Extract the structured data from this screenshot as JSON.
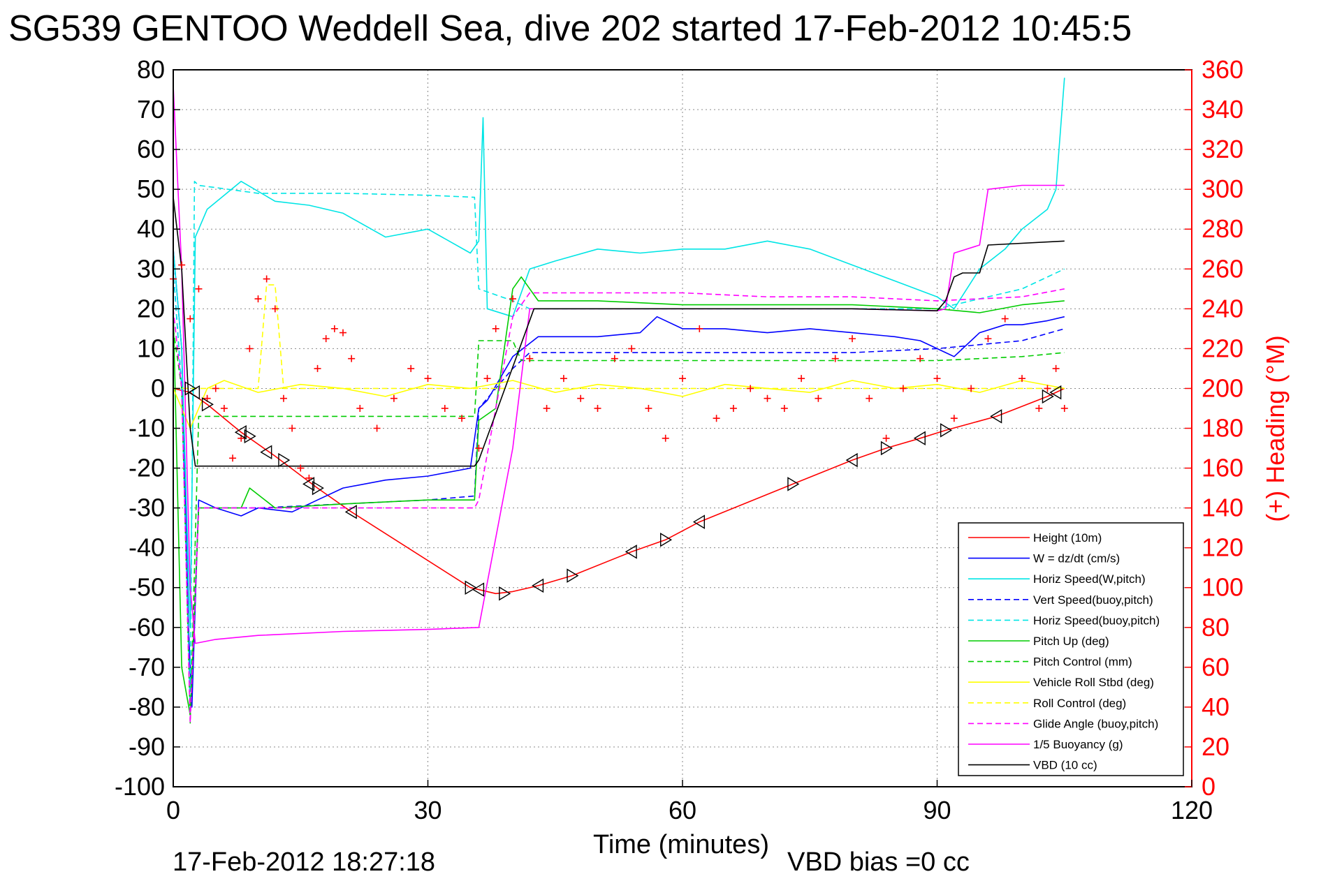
{
  "chart_data": {
    "type": "line",
    "title": "SG539 GENTOO Weddell Sea, dive 202 started 17-Feb-2012 10:45:5",
    "xlabel": "Time (minutes)",
    "ylabel_right": "(+) Heading (°M)",
    "xlim": [
      0,
      120
    ],
    "ylim_left": [
      -100,
      80
    ],
    "ylim_right": [
      0,
      360
    ],
    "x_ticks": [
      "0",
      "30",
      "60",
      "90",
      "120"
    ],
    "y_ticks_left": [
      "80",
      "70",
      "60",
      "50",
      "40",
      "30",
      "20",
      "10",
      "0",
      "-10",
      "-20",
      "-30",
      "-40",
      "-50",
      "-60",
      "-70",
      "-80",
      "-90",
      "-100"
    ],
    "y_ticks_right": [
      "360",
      "340",
      "320",
      "300",
      "280",
      "260",
      "240",
      "220",
      "200",
      "180",
      "160",
      "140",
      "120",
      "100",
      "80",
      "60",
      "40",
      "20",
      "0"
    ],
    "grid": true,
    "legend_position": "bottom-right",
    "footer_left": "17-Feb-2012 18:27:18",
    "footer_right": "VBD bias =0 cc",
    "series": [
      {
        "name": "Height (10m)",
        "color": "#ff0000",
        "style": "solid",
        "x": [
          0,
          2,
          4,
          8,
          12,
          17,
          21,
          35,
          38,
          40,
          43,
          47,
          54,
          58,
          62,
          73,
          80,
          84,
          88,
          91,
          97,
          103,
          105
        ],
        "y": [
          0,
          -1,
          -4,
          -11,
          -17,
          -25,
          -31,
          -50,
          -51.5,
          -51,
          -49.5,
          -47,
          -41,
          -38,
          -33.5,
          -24,
          -18,
          -15,
          -12.5,
          -10.5,
          -7,
          -2,
          0
        ]
      },
      {
        "name": "W = dz/dt (cm/s)",
        "color": "#0000ff",
        "style": "solid",
        "x": [
          0,
          1,
          1.8,
          2.2,
          3,
          5,
          8,
          10,
          14,
          17,
          20,
          25,
          30,
          35,
          36,
          37,
          40,
          43,
          50,
          55,
          57,
          60,
          65,
          70,
          75,
          80,
          85,
          88,
          90,
          92,
          95,
          98,
          100,
          103,
          105
        ],
        "y": [
          35,
          10,
          -60,
          -80,
          -28,
          -30,
          -32,
          -30,
          -31,
          -28,
          -25,
          -23,
          -22,
          -20,
          -5,
          -3,
          8,
          13,
          13,
          14,
          18,
          15,
          15,
          14,
          15,
          14,
          13,
          12,
          10,
          8,
          14,
          16,
          16,
          17,
          18
        ]
      },
      {
        "name": "Horiz Speed(W,pitch)",
        "color": "#00e5e5",
        "style": "solid",
        "x": [
          0,
          1,
          2,
          2.6,
          4,
          8,
          12,
          16,
          20,
          25,
          30,
          35,
          36,
          36.5,
          37,
          40,
          42,
          45,
          50,
          55,
          60,
          65,
          70,
          75,
          80,
          85,
          90,
          92,
          95,
          98,
          100,
          103,
          104,
          105
        ],
        "y": [
          35,
          10,
          -60,
          38,
          45,
          52,
          47,
          46,
          44,
          38,
          40,
          34,
          37,
          68,
          20,
          18,
          30,
          32,
          35,
          34,
          35,
          35,
          37,
          35,
          31,
          27,
          23,
          20,
          30,
          35,
          40,
          45,
          50,
          78
        ]
      },
      {
        "name": "Vert Speed(buoy,pitch)",
        "color": "#0000ff",
        "style": "dashed",
        "x": [
          0,
          1,
          2,
          3,
          10,
          20,
          30,
          35.5,
          36,
          40,
          42,
          50,
          60,
          70,
          80,
          90,
          100,
          105
        ],
        "y": [
          30,
          0,
          -80,
          -30,
          -30,
          -29,
          -28,
          -27,
          -5,
          5,
          9,
          9,
          9,
          9,
          9,
          10,
          12,
          15
        ]
      },
      {
        "name": "Horiz Speed(buoy,pitch)",
        "color": "#00e5e5",
        "style": "dashed",
        "x": [
          0,
          1,
          2,
          2.5,
          3,
          10,
          20,
          30,
          35.5,
          36,
          40,
          42,
          50,
          60,
          70,
          80,
          90,
          100,
          105
        ],
        "y": [
          30,
          0,
          -80,
          52,
          51,
          49,
          49,
          48.5,
          48,
          25,
          22,
          20,
          20,
          20,
          20,
          20,
          20,
          25,
          30
        ]
      },
      {
        "name": "Pitch Up (deg)",
        "color": "#00cc00",
        "style": "solid",
        "x": [
          0,
          1,
          2,
          3,
          8,
          9,
          12,
          20,
          30,
          35.5,
          36,
          38,
          40,
          41,
          43,
          50,
          60,
          70,
          80,
          90,
          95,
          100,
          105
        ],
        "y": [
          20,
          -70,
          -82,
          -30,
          -30,
          -25,
          -30,
          -29,
          -28,
          -28,
          -8,
          -5,
          25,
          28,
          22,
          22,
          21,
          21,
          21,
          20,
          19,
          21,
          22
        ]
      },
      {
        "name": "Pitch Control (mm)",
        "color": "#00cc00",
        "style": "dashed",
        "x": [
          0,
          1,
          2,
          3,
          35.5,
          36,
          40,
          41,
          60,
          80,
          90,
          100,
          105
        ],
        "y": [
          15,
          0,
          -84,
          -7,
          -7,
          12,
          12,
          7,
          7,
          7,
          7,
          8,
          9
        ]
      },
      {
        "name": "Vehicle Roll Stbd (deg)",
        "color": "#ffff00",
        "style": "solid",
        "x": [
          0,
          2,
          4,
          6,
          10,
          15,
          20,
          25,
          30,
          35,
          40,
          45,
          50,
          55,
          60,
          65,
          70,
          75,
          80,
          85,
          90,
          95,
          100,
          105
        ],
        "y": [
          0,
          -10,
          0,
          2,
          -1,
          1,
          0,
          -2,
          1,
          0,
          2,
          -1,
          1,
          0,
          -2,
          1,
          0,
          -1,
          2,
          0,
          1,
          -1,
          2,
          0
        ]
      },
      {
        "name": "Roll Control (deg)",
        "color": "#ffff00",
        "style": "dashed",
        "x": [
          0,
          10,
          11,
          12,
          13,
          30,
          60,
          90,
          100,
          105
        ],
        "y": [
          0,
          0,
          26,
          26,
          0,
          0,
          0,
          0,
          0,
          0
        ]
      },
      {
        "name": "Glide Angle (buoy,pitch)",
        "color": "#ff00ff",
        "style": "dashed",
        "x": [
          0,
          1,
          2,
          3,
          35.5,
          36,
          40,
          42,
          50,
          60,
          70,
          80,
          90,
          100,
          105
        ],
        "y": [
          20,
          0,
          -84,
          -30,
          -30,
          -28,
          18,
          24,
          24,
          24,
          23,
          23,
          22,
          23,
          25
        ]
      },
      {
        "name": "1/5 Buoyancy (g)",
        "color": "#ff00ff",
        "style": "solid",
        "x": [
          0,
          1,
          2,
          2.6,
          5,
          10,
          20,
          30,
          36,
          40,
          42,
          50,
          60,
          70,
          80,
          90,
          91,
          92,
          95,
          96,
          100,
          103,
          105
        ],
        "y": [
          76,
          30,
          -50,
          -64,
          -63,
          -62,
          -61,
          -60.5,
          -60,
          -15,
          20,
          20,
          20,
          20,
          20,
          19.5,
          20,
          34,
          36,
          50,
          51,
          51,
          51
        ]
      },
      {
        "name": "VBD (10 cc)",
        "color": "#000000",
        "style": "solid",
        "x": [
          0,
          1,
          2,
          2.6,
          10,
          20,
          30,
          35.5,
          36,
          42.5,
          50,
          60,
          70,
          80,
          90,
          91,
          92,
          93,
          94,
          95,
          96,
          105
        ],
        "y": [
          48,
          30,
          -10,
          -19.5,
          -19.5,
          -19.5,
          -19.5,
          -19.5,
          -18,
          20,
          20,
          20,
          20,
          20,
          19.5,
          22,
          28,
          29,
          29,
          29,
          36,
          37
        ]
      },
      {
        "name": "(+) Heading",
        "axis": "right",
        "color": "#ff0000",
        "style": "plus-markers",
        "x": [
          0,
          1,
          2,
          3,
          4,
          5,
          6,
          7,
          8,
          9,
          10,
          11,
          12,
          13,
          14,
          15,
          16,
          17,
          18,
          19,
          20,
          21,
          22,
          24,
          26,
          28,
          30,
          32,
          34,
          36,
          37,
          38,
          40,
          42,
          44,
          46,
          48,
          50,
          52,
          54,
          56,
          58,
          60,
          62,
          64,
          66,
          68,
          70,
          72,
          74,
          76,
          78,
          80,
          82,
          84,
          86,
          88,
          90,
          92,
          94,
          96,
          98,
          100,
          102,
          103,
          104,
          105
        ],
        "y": [
          255,
          262,
          235,
          250,
          195,
          200,
          190,
          165,
          175,
          220,
          245,
          255,
          240,
          195,
          180,
          160,
          155,
          210,
          225,
          230,
          228,
          215,
          190,
          180,
          195,
          210,
          205,
          190,
          185,
          170,
          205,
          230,
          245,
          215,
          190,
          205,
          195,
          190,
          215,
          220,
          190,
          175,
          205,
          230,
          185,
          190,
          200,
          195,
          190,
          205,
          195,
          215,
          225,
          195,
          175,
          200,
          215,
          205,
          185,
          200,
          225,
          235,
          205,
          190,
          200,
          210,
          190
        ]
      }
    ],
    "height_markers": {
      "x": [
        2,
        2.5,
        4,
        8,
        9,
        11,
        13,
        16,
        17,
        21,
        35,
        36,
        39,
        43,
        47,
        54,
        58,
        62,
        73,
        80,
        84,
        88,
        91,
        97,
        103,
        104
      ],
      "y": [
        0,
        -1,
        -4,
        -11,
        -12,
        -16,
        -18,
        -24,
        -25,
        -31,
        -50,
        -50.5,
        -51.5,
        -49.5,
        -47,
        -41,
        -38,
        -33.5,
        -24,
        -18,
        -15,
        -12.5,
        -10.5,
        -7,
        -2,
        -1
      ]
    }
  }
}
